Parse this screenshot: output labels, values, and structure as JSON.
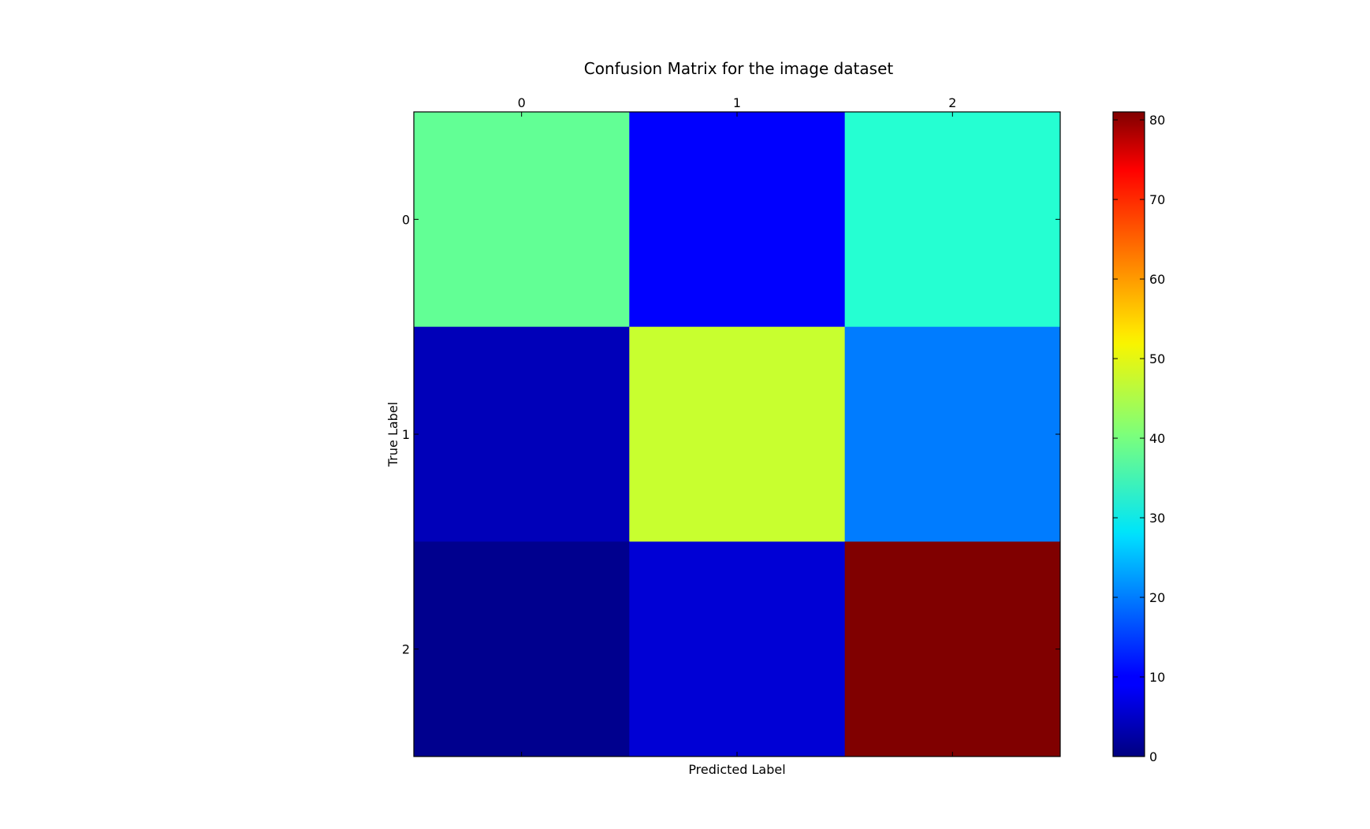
{
  "chart_data": {
    "type": "heatmap",
    "title": "Confusion Matrix for the image dataset",
    "xlabel": "Predicted Label",
    "ylabel": "True Label",
    "x_categories": [
      "0",
      "1",
      "2"
    ],
    "y_categories": [
      "0",
      "1",
      "2"
    ],
    "matrix": [
      [
        38,
        10,
        32
      ],
      [
        4,
        48,
        20
      ],
      [
        1,
        6,
        81
      ]
    ],
    "colormap": "jet",
    "colorbar": {
      "vmin": 0,
      "vmax": 81,
      "ticks": [
        0,
        10,
        20,
        30,
        40,
        50,
        60,
        70,
        80
      ],
      "tick_labels": [
        "0",
        "10",
        "20",
        "30",
        "40",
        "50",
        "60",
        "70",
        "80"
      ]
    },
    "x_tick_position": "top",
    "grid": false
  }
}
